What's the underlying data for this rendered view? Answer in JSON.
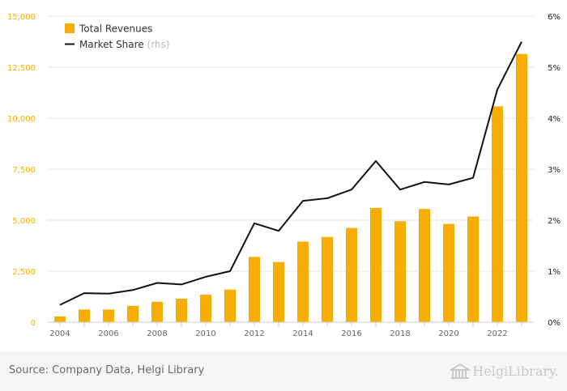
{
  "chart_data": {
    "type": "bar+line",
    "x": [
      2004,
      2005,
      2006,
      2007,
      2008,
      2009,
      2010,
      2011,
      2012,
      2013,
      2014,
      2015,
      2016,
      2017,
      2018,
      2019,
      2020,
      2021,
      2022,
      2023
    ],
    "x_tick_labels": [
      "2004",
      "2006",
      "2008",
      "2010",
      "2012",
      "2014",
      "2016",
      "2018",
      "2020",
      "2022"
    ],
    "series": [
      {
        "name": "Total Revenues",
        "type": "bar",
        "axis": "left",
        "color": "#f7ae00",
        "values": [
          280,
          620,
          620,
          800,
          1000,
          1150,
          1350,
          1600,
          3200,
          2950,
          3950,
          4180,
          4620,
          5600,
          4950,
          5550,
          4820,
          5180,
          10580,
          13150
        ]
      },
      {
        "name": "Market Share",
        "name_suffix": "(rhs)",
        "type": "line",
        "axis": "right",
        "color": "#111111",
        "values": [
          0.34,
          0.57,
          0.56,
          0.63,
          0.77,
          0.74,
          0.89,
          1.0,
          1.94,
          1.79,
          2.38,
          2.43,
          2.6,
          3.16,
          2.6,
          2.75,
          2.7,
          2.83,
          4.56,
          5.5
        ]
      }
    ],
    "y_left": {
      "ylim": [
        0,
        15000
      ],
      "ticks": [
        0,
        2500,
        5000,
        7500,
        10000,
        12500,
        15000
      ],
      "tick_labels": [
        "0",
        "2,500",
        "5,000",
        "7,500",
        "10,000",
        "12,500",
        "15,000"
      ],
      "color": "#f7ae00"
    },
    "y_right": {
      "ylim": [
        0,
        6
      ],
      "ticks": [
        0,
        1,
        2,
        3,
        4,
        5,
        6
      ],
      "tick_labels": [
        "0%",
        "1%",
        "2%",
        "3%",
        "4%",
        "5%",
        "6%"
      ],
      "color": "#222222"
    },
    "grid": true,
    "legend_position": "top-left",
    "title": "",
    "xlabel": "",
    "ylabel": ""
  },
  "footer": {
    "source": "Source: Company Data, Helgi Library",
    "logo_text": "HelgiLibrary."
  }
}
